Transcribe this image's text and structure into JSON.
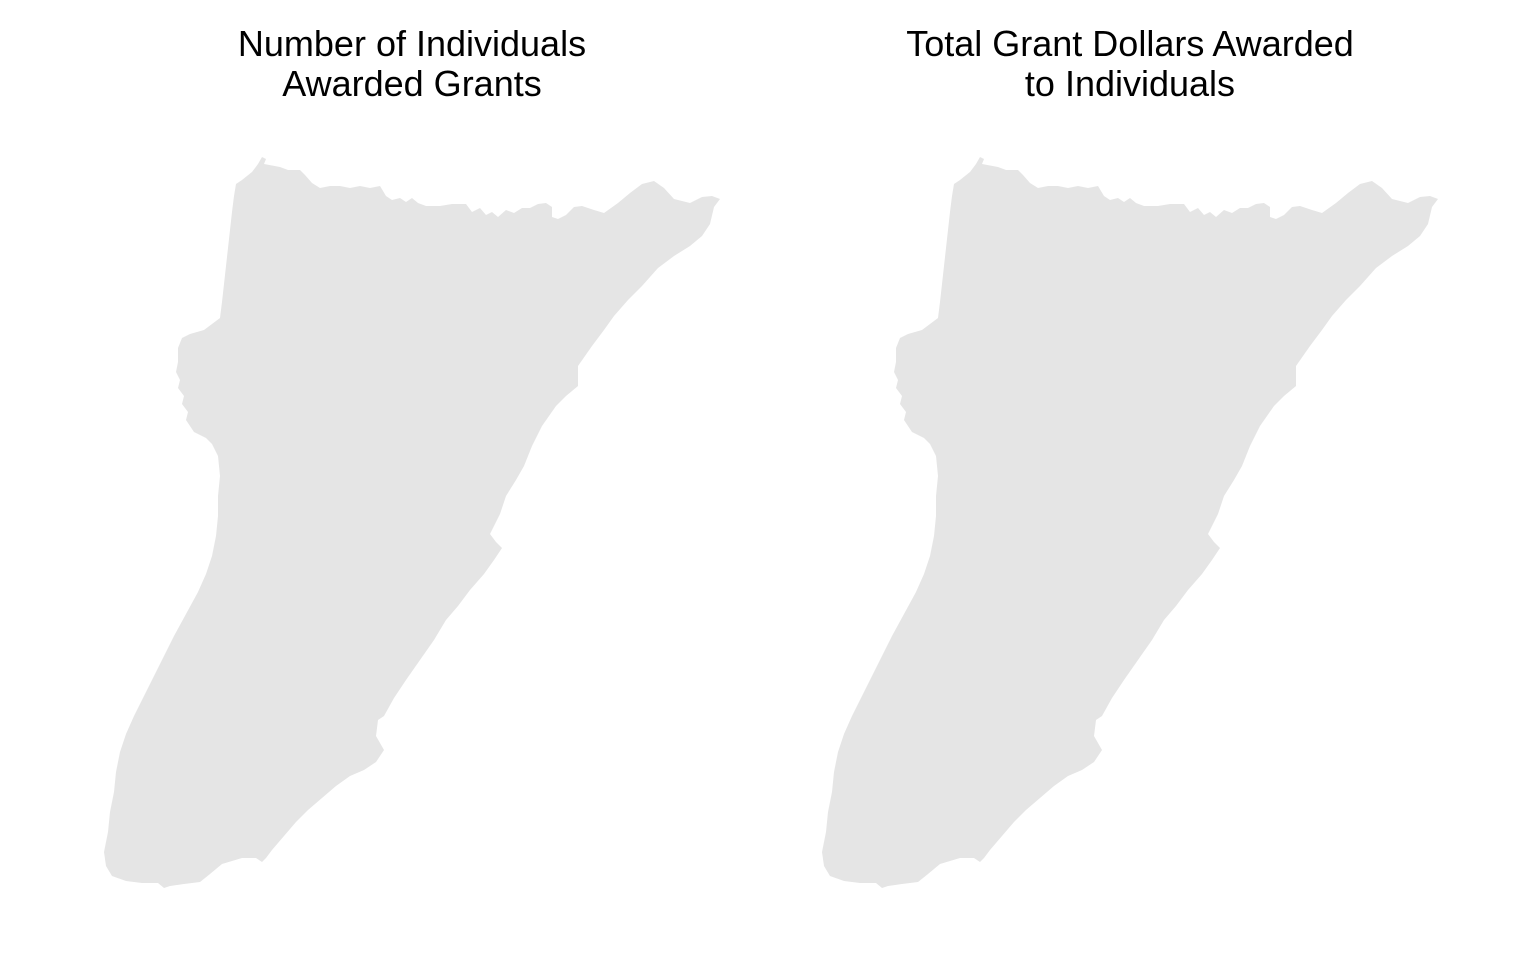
{
  "colors": {
    "background": "#ffffff",
    "region_fill": "#e5e5e5",
    "title_text": "#000000"
  },
  "panels": [
    {
      "title_line1": "Number of Individuals",
      "title_line2": "Awarded Grants"
    },
    {
      "title_line1": "Total Grant Dollars Awarded",
      "title_line2": "to Individuals"
    }
  ]
}
